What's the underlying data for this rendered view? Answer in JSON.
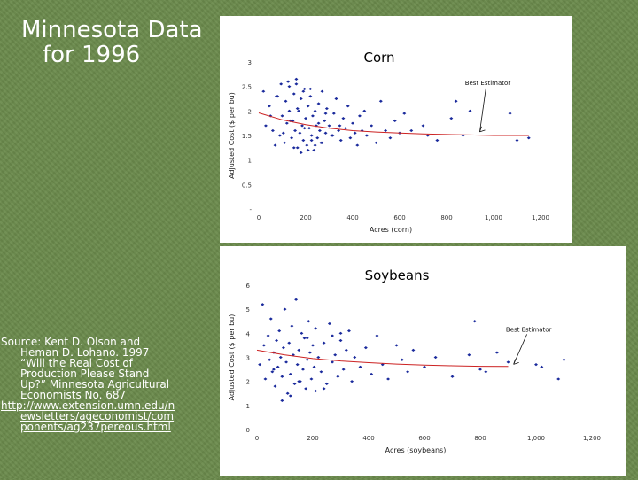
{
  "slide": {
    "title_line1": "Minnesota Data",
    "title_line2": "for 1996",
    "source_lines": [
      "Source: Kent D. Olson and",
      "Heman D. Lohano.  1997",
      "“Will the Real Cost of",
      "Production Please Stand",
      "Up?” Minnesota Agricultural",
      "Economists No. 687"
    ],
    "link_lines": [
      "http://www.extension.umn.edu/n",
      "ewsletters/ageconomist/com",
      "ponents/ag237pereous.html"
    ]
  },
  "chart_data": [
    {
      "type": "scatter",
      "title": "Corn",
      "xlabel": "Acres (corn)",
      "ylabel": "Adjusted Cost ($ per bu)",
      "xlim": [
        0,
        1200
      ],
      "ylim": [
        0,
        3
      ],
      "xticks": [
        0,
        200,
        400,
        600,
        800,
        1000,
        1200
      ],
      "xtick_labels": [
        "0",
        "200",
        "400",
        "600",
        "800",
        "1,000",
        "1,200"
      ],
      "yticks": [
        0,
        0.5,
        1,
        1.5,
        2,
        2.5,
        3
      ],
      "ytick_labels": [
        "-",
        "0.5",
        "1",
        "1.5",
        "2",
        "2.5",
        "3"
      ],
      "annotation": "Best Estimator",
      "annotation_point": [
        930,
        1.52
      ],
      "fit_line": {
        "color": "#cc2222",
        "x": [
          0,
          100,
          200,
          300,
          400,
          500,
          600,
          700,
          800,
          900,
          1000,
          1100,
          1150
        ],
        "y": [
          1.96,
          1.82,
          1.72,
          1.65,
          1.6,
          1.57,
          1.55,
          1.53,
          1.52,
          1.51,
          1.5,
          1.5,
          1.5
        ]
      },
      "series": [
        {
          "color": "#1a2a9c",
          "x": [
            20,
            30,
            45,
            60,
            70,
            80,
            90,
            95,
            100,
            110,
            115,
            120,
            125,
            130,
            140,
            145,
            150,
            155,
            160,
            165,
            170,
            175,
            180,
            185,
            190,
            195,
            200,
            205,
            210,
            215,
            220,
            225,
            230,
            235,
            240,
            245,
            250,
            255,
            260,
            265,
            270,
            280,
            285,
            290,
            300,
            310,
            320,
            330,
            340,
            350,
            360,
            370,
            380,
            390,
            400,
            410,
            420,
            430,
            440,
            450,
            460,
            480,
            500,
            520,
            540,
            560,
            580,
            600,
            620,
            650,
            700,
            720,
            760,
            820,
            840,
            870,
            900,
            1070,
            1100,
            1150,
            50,
            75,
            105,
            135,
            165,
            195,
            225,
            255,
            285,
            315,
            345,
            150,
            180,
            210,
            240,
            270,
            130,
            160,
            190,
            220
          ],
          "y": [
            2.4,
            1.7,
            2.1,
            1.6,
            1.3,
            2.3,
            1.5,
            2.55,
            1.9,
            1.35,
            2.2,
            1.75,
            2.6,
            2.0,
            1.45,
            1.8,
            2.35,
            1.6,
            2.65,
            1.25,
            2.0,
            1.55,
            2.25,
            1.7,
            1.4,
            2.45,
            1.85,
            1.3,
            2.1,
            1.65,
            2.3,
            1.5,
            1.9,
            1.2,
            2.0,
            1.7,
            1.45,
            2.15,
            1.6,
            1.35,
            2.4,
            1.8,
            1.55,
            2.05,
            1.7,
            1.5,
            1.95,
            2.25,
            1.6,
            1.4,
            1.85,
            1.65,
            2.1,
            1.45,
            1.75,
            1.55,
            1.3,
            1.9,
            1.6,
            2.0,
            1.5,
            1.7,
            1.35,
            2.2,
            1.6,
            1.45,
            1.8,
            1.55,
            1.95,
            1.6,
            1.7,
            1.5,
            1.4,
            1.85,
            2.2,
            1.5,
            2.0,
            1.95,
            1.4,
            1.45,
            1.9,
            2.3,
            1.55,
            1.8,
            2.05,
            1.65,
            1.4,
            1.75,
            1.95,
            1.5,
            1.7,
            1.25,
            1.15,
            1.2,
            1.3,
            1.35,
            2.5,
            2.55,
            2.4,
            2.45
          ]
        }
      ]
    },
    {
      "type": "scatter",
      "title": "Soybeans",
      "xlabel": "Acres (soybeans)",
      "ylabel": "Adjusted Cost ($ per bu)",
      "xlim": [
        0,
        1200
      ],
      "ylim": [
        0,
        6
      ],
      "xticks": [
        0,
        200,
        400,
        600,
        800,
        1000,
        1200
      ],
      "xtick_labels": [
        "0",
        "200",
        "400",
        "600",
        "800",
        "1,000",
        "1,200"
      ],
      "yticks": [
        0,
        1,
        2,
        3,
        4,
        5,
        6
      ],
      "ytick_labels": [
        "0",
        "1",
        "2",
        "3",
        "4",
        "5",
        "6"
      ],
      "annotation": "Best Estimator",
      "annotation_point": [
        910,
        2.6
      ],
      "fit_line": {
        "color": "#cc2222",
        "x": [
          0,
          100,
          200,
          300,
          400,
          500,
          600,
          700,
          800,
          900
        ],
        "y": [
          3.3,
          3.1,
          2.95,
          2.85,
          2.78,
          2.72,
          2.68,
          2.65,
          2.63,
          2.62
        ]
      },
      "series": [
        {
          "color": "#1a2a9c",
          "x": [
            10,
            20,
            25,
            30,
            40,
            45,
            50,
            55,
            60,
            65,
            70,
            75,
            80,
            85,
            90,
            95,
            100,
            105,
            110,
            115,
            120,
            125,
            130,
            135,
            140,
            145,
            150,
            155,
            160,
            165,
            170,
            175,
            180,
            185,
            190,
            195,
            200,
            205,
            210,
            220,
            230,
            240,
            250,
            260,
            270,
            280,
            290,
            300,
            310,
            320,
            330,
            340,
            350,
            370,
            390,
            410,
            430,
            450,
            470,
            500,
            520,
            540,
            560,
            600,
            640,
            700,
            760,
            780,
            800,
            820,
            860,
            900,
            1000,
            1020,
            1100,
            1080,
            60,
            120,
            180,
            240,
            300,
            90,
            150,
            210,
            270
          ],
          "y": [
            2.7,
            5.2,
            3.5,
            2.1,
            3.9,
            2.9,
            4.6,
            2.4,
            3.2,
            1.8,
            3.7,
            2.6,
            4.1,
            3.0,
            2.2,
            3.4,
            5.0,
            2.8,
            1.5,
            3.6,
            2.3,
            4.3,
            3.1,
            1.9,
            5.4,
            2.7,
            3.3,
            2.0,
            4.0,
            2.5,
            3.8,
            1.7,
            2.9,
            4.5,
            3.2,
            2.1,
            3.5,
            2.6,
            4.2,
            3.0,
            2.4,
            3.6,
            1.9,
            4.4,
            2.8,
            3.1,
            2.2,
            3.7,
            2.5,
            3.3,
            4.1,
            2.0,
            3.0,
            2.6,
            3.4,
            2.3,
            3.9,
            2.7,
            2.1,
            3.5,
            2.9,
            2.4,
            3.3,
            2.6,
            3.0,
            2.2,
            3.1,
            4.5,
            2.5,
            2.4,
            3.2,
            2.8,
            2.7,
            2.6,
            2.9,
            2.1,
            2.5,
            1.4,
            3.8,
            1.7,
            4.0,
            1.2,
            2.0,
            1.6,
            3.9
          ]
        }
      ]
    }
  ]
}
